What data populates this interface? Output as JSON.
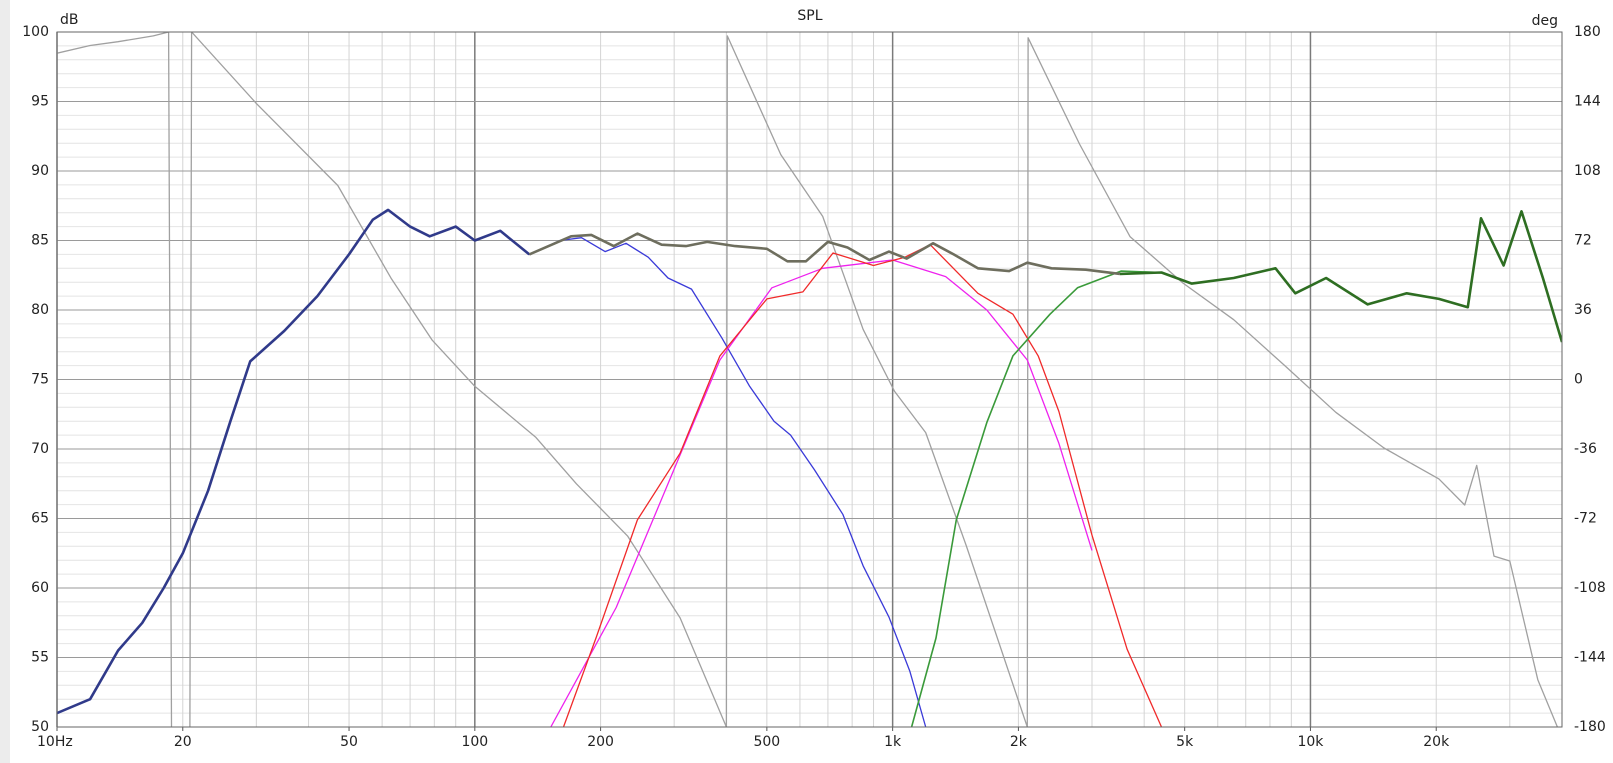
{
  "chart_data": {
    "type": "line",
    "title": "SPL",
    "y_label": "dB",
    "y2_label": "deg",
    "log_x": true,
    "grid": true,
    "xlim": [
      10,
      40000
    ],
    "xticks": [
      {
        "value": 10,
        "label": "10Hz"
      },
      20,
      50,
      100,
      200,
      500,
      {
        "value": 1000,
        "label": "1k"
      },
      {
        "value": 2000,
        "label": "2k"
      },
      {
        "value": 5000,
        "label": "5k"
      },
      {
        "value": 10000,
        "label": "10k"
      },
      {
        "value": 20000,
        "label": "20k"
      }
    ],
    "xminorticks": [
      10,
      20,
      30,
      40,
      50,
      60,
      70,
      80,
      90,
      100,
      200,
      300,
      400,
      500,
      600,
      700,
      800,
      900,
      1000,
      2000,
      3000,
      4000,
      5000,
      6000,
      7000,
      8000,
      9000,
      10000,
      20000,
      30000,
      40000
    ],
    "ylim": [
      50,
      100
    ],
    "yticks": [
      50,
      55,
      60,
      65,
      70,
      75,
      80,
      85,
      90,
      95,
      100
    ],
    "yminorticks": [
      50,
      51,
      52,
      53,
      54,
      55,
      56,
      57,
      58,
      59,
      60,
      61,
      62,
      63,
      64,
      65,
      66,
      67,
      68,
      69,
      70,
      71,
      72,
      73,
      74,
      75,
      76,
      77,
      78,
      79,
      80,
      81,
      82,
      83,
      84,
      85,
      86,
      87,
      88,
      89,
      90,
      91,
      92,
      93,
      94,
      95,
      96,
      97,
      98,
      99,
      100
    ],
    "y2lim": [
      -180,
      180
    ],
    "y2ticks": [
      -180,
      -144,
      -108,
      -72,
      -36,
      0,
      36,
      72,
      108,
      144,
      180
    ],
    "series": [
      {
        "color": "#a0a0a0",
        "line_width": 1.3,
        "axis": "y2",
        "x": [
          10,
          12,
          14,
          17,
          18.5,
          18.8,
          null,
          20.8,
          21,
          30,
          47,
          63,
          79,
          100,
          140,
          175,
          232,
          310,
          400,
          402,
          540,
          680,
          850,
          1010,
          1200,
          1500,
          2100,
          2110,
          2800,
          3700,
          4950,
          6550,
          8700,
          11500,
          15000,
          20300,
          23400,
          25000,
          27500,
          30000,
          35000,
          39000
        ],
        "values": [
          169,
          173,
          175,
          178,
          180,
          -180,
          null,
          -180,
          180,
          143,
          100.5,
          52.5,
          20.5,
          -3.5,
          -30,
          -54,
          -81,
          -123.5,
          -180,
          178,
          116.5,
          84.5,
          26,
          -6,
          -27.5,
          -86,
          -180,
          177,
          122,
          74,
          50,
          31,
          7,
          -17,
          -35.5,
          -51.5,
          -65,
          -44.5,
          -91.5,
          -94,
          -155.5,
          -180
        ]
      },
      {
        "color": "#3a3ad8",
        "line_width": 1.3,
        "x": [
          10,
          12,
          14,
          16,
          18,
          20,
          23,
          26,
          29,
          35,
          42,
          50,
          57,
          62,
          70,
          78,
          90,
          100,
          115,
          135,
          160,
          180,
          205,
          230,
          260,
          290,
          330,
          390,
          455,
          520,
          570,
          650,
          760,
          850,
          980,
          1100,
          1200
        ],
        "values": [
          51,
          52,
          55.5,
          57.5,
          60,
          62.5,
          67,
          72,
          76.3,
          78.5,
          81,
          84,
          86.5,
          87.2,
          86,
          85.3,
          86,
          85,
          85.7,
          84,
          85,
          85.2,
          84.2,
          84.8,
          83.8,
          82.3,
          81.5,
          78,
          74.5,
          72,
          71,
          68.5,
          65.3,
          61.6,
          57.9,
          54,
          50
        ]
      },
      {
        "color": "#ee22ee",
        "line_width": 1.3,
        "x": [
          152,
          218,
          290,
          386,
          514,
          680,
          1000,
          1340,
          1680,
          2100,
          2500,
          3000
        ],
        "values": [
          50,
          58.6,
          67.5,
          76.4,
          81.6,
          83,
          83.6,
          82.4,
          80,
          76.4,
          70.4,
          62.7
        ]
      },
      {
        "color": "#f02a2a",
        "line_width": 1.3,
        "x": [
          163,
          195,
          245,
          310,
          386,
          500,
          610,
          720,
          900,
          1070,
          1230,
          1600,
          1940,
          2230,
          2500,
          3000,
          3640,
          4400
        ],
        "values": [
          50,
          56.4,
          64.9,
          69.7,
          76.7,
          80.8,
          81.3,
          84.1,
          83.2,
          83.8,
          84.7,
          81.2,
          79.7,
          76.7,
          72.7,
          63.8,
          55.6,
          50
        ]
      },
      {
        "color": "#3a9a3a",
        "line_width": 1.6,
        "x": [
          1110,
          1270,
          1420,
          1680,
          1940,
          2380,
          2770,
          3520,
          4400,
          5200,
          6550,
          8250,
          9200,
          10900,
          13700,
          17000,
          20300,
          23800,
          25600,
          29000,
          32000,
          36000,
          40000
        ],
        "values": [
          50,
          56.4,
          64.9,
          71.9,
          76.7,
          79.7,
          81.6,
          82.8,
          82.7,
          81.9,
          82.3,
          83,
          81.2,
          82.3,
          80.4,
          81.2,
          80.8,
          80.2,
          86.6,
          83.2,
          87.1,
          82.3,
          77.7
        ]
      },
      {
        "color": "#303a8a",
        "line_width": 2.6,
        "x": [
          10,
          12,
          14,
          16,
          18,
          20,
          23,
          26,
          29,
          35,
          42,
          50,
          57,
          62,
          70,
          78,
          90,
          100,
          115,
          135
        ],
        "values": [
          51,
          52,
          55.5,
          57.5,
          60,
          62.5,
          67,
          72,
          76.3,
          78.5,
          81,
          84,
          86.5,
          87.2,
          86,
          85.3,
          86,
          85,
          85.7,
          84
        ]
      },
      {
        "color": "#6e6e5e",
        "line_width": 2.6,
        "x": [
          135,
          170,
          190,
          215,
          245,
          280,
          320,
          360,
          420,
          500,
          560,
          620,
          700,
          780,
          880,
          980,
          1080,
          1250,
          1400,
          1600,
          1900,
          2100,
          2400,
          2900,
          3500
        ],
        "values": [
          84,
          85.3,
          85.4,
          84.6,
          85.5,
          84.7,
          84.6,
          84.9,
          84.6,
          84.4,
          83.5,
          83.5,
          84.9,
          84.5,
          83.6,
          84.2,
          83.7,
          84.8,
          84,
          83,
          82.8,
          83.4,
          83,
          82.9,
          82.6
        ]
      },
      {
        "color": "#2e6e22",
        "line_width": 2.6,
        "x": [
          3500,
          4400,
          5200,
          6550,
          8250,
          9200,
          10900,
          13700,
          17000,
          20300,
          23800,
          25600,
          29000,
          32000,
          36000,
          40000
        ],
        "values": [
          82.6,
          82.7,
          81.9,
          82.3,
          83,
          81.2,
          82.3,
          80.4,
          81.2,
          80.8,
          80.2,
          86.6,
          83.2,
          87.1,
          82.3,
          77.7
        ]
      }
    ]
  }
}
